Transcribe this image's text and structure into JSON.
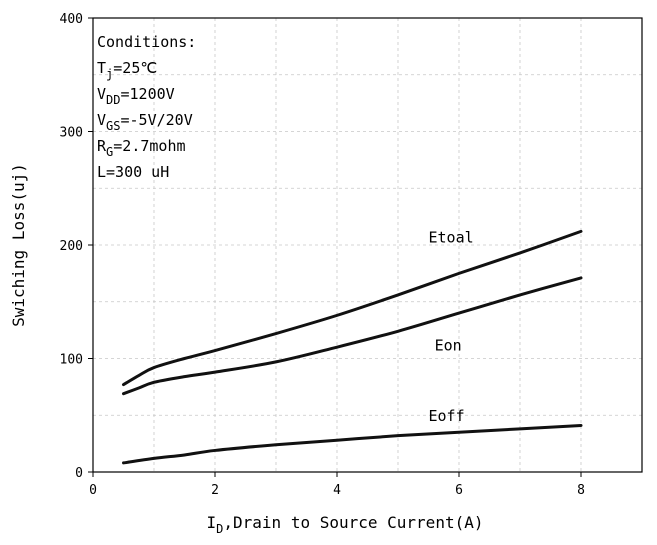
{
  "chart_data": {
    "type": "line",
    "title": "",
    "xlabel": {
      "prefix": "I",
      "sub": "D",
      "rest": ",Drain to Source Current(A)"
    },
    "ylabel": "Swiching Loss(uj)",
    "xlim": [
      0,
      9
    ],
    "ylim": [
      0,
      400
    ],
    "xticks": [
      0,
      2,
      4,
      6,
      8
    ],
    "yticks": [
      0,
      100,
      200,
      300,
      400
    ],
    "grid": true,
    "conditions": [
      {
        "main": "Conditions:",
        "sub": "",
        "rest": ""
      },
      {
        "main": "T",
        "sub": "j",
        "rest": "=25℃"
      },
      {
        "main": "V",
        "sub": "DD",
        "rest": "=1200V"
      },
      {
        "main": "V",
        "sub": "GS",
        "rest": "=-5V/20V"
      },
      {
        "main": "R",
        "sub": "G",
        "rest": "=2.7mohm"
      },
      {
        "main": "L=300 uH",
        "sub": "",
        "rest": ""
      }
    ],
    "series": [
      {
        "name": "Etoal",
        "label_at": [
          5.5,
          202
        ],
        "points": [
          [
            0.5,
            77
          ],
          [
            0.75,
            85
          ],
          [
            1.0,
            92
          ],
          [
            1.5,
            100
          ],
          [
            2,
            107
          ],
          [
            3,
            122
          ],
          [
            4,
            138
          ],
          [
            5,
            156
          ],
          [
            6,
            175
          ],
          [
            7,
            193
          ],
          [
            8,
            212
          ]
        ]
      },
      {
        "name": "Eon",
        "label_at": [
          5.6,
          107
        ],
        "points": [
          [
            0.5,
            69
          ],
          [
            0.75,
            74
          ],
          [
            1.0,
            79
          ],
          [
            1.5,
            84
          ],
          [
            2,
            88
          ],
          [
            3,
            97
          ],
          [
            4,
            110
          ],
          [
            5,
            124
          ],
          [
            6,
            140
          ],
          [
            7,
            156
          ],
          [
            8,
            171
          ]
        ]
      },
      {
        "name": "Eoff",
        "label_at": [
          5.5,
          45
        ],
        "points": [
          [
            0.5,
            8
          ],
          [
            1.0,
            12
          ],
          [
            1.5,
            15
          ],
          [
            2,
            19
          ],
          [
            3,
            24
          ],
          [
            4,
            28
          ],
          [
            5,
            32
          ],
          [
            6,
            35
          ],
          [
            7,
            38
          ],
          [
            8,
            41
          ]
        ]
      }
    ]
  }
}
